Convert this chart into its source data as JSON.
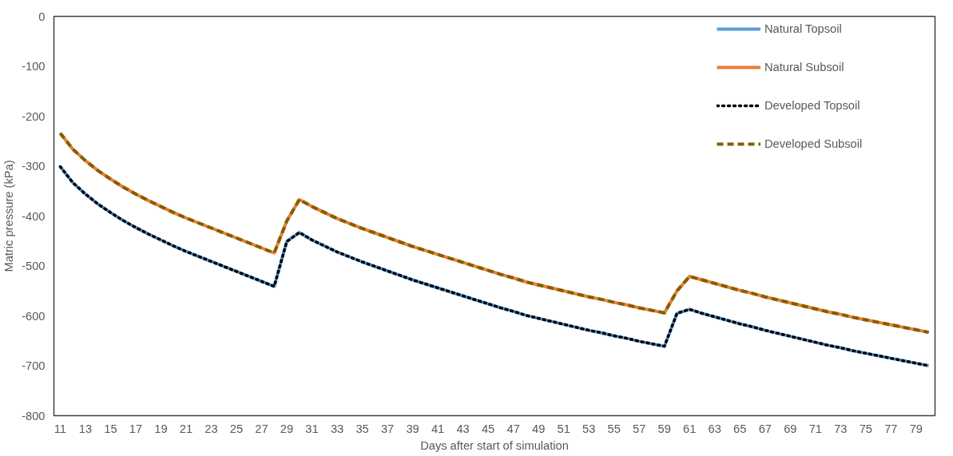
{
  "chart_data": {
    "type": "line",
    "xlabel": "Days after start of simulation",
    "ylabel": "Matric pressure (kPa)",
    "x": [
      11,
      12,
      13,
      14,
      15,
      16,
      17,
      18,
      19,
      20,
      21,
      22,
      23,
      24,
      25,
      26,
      27,
      28,
      29,
      30,
      31,
      32,
      33,
      34,
      35,
      36,
      37,
      38,
      39,
      40,
      41,
      42,
      43,
      44,
      45,
      46,
      47,
      48,
      49,
      50,
      51,
      52,
      53,
      54,
      55,
      56,
      57,
      58,
      59,
      60,
      61,
      62,
      63,
      64,
      65,
      66,
      67,
      68,
      69,
      70,
      71,
      72,
      73,
      74,
      75,
      76,
      77,
      78,
      79,
      80
    ],
    "xlim": [
      10.5,
      80.5
    ],
    "xticks": [
      11,
      13,
      15,
      17,
      19,
      21,
      23,
      25,
      27,
      29,
      31,
      33,
      35,
      37,
      39,
      41,
      43,
      45,
      47,
      49,
      51,
      53,
      55,
      57,
      59,
      61,
      63,
      65,
      67,
      69,
      71,
      73,
      75,
      77,
      79
    ],
    "ylim": [
      -800,
      0
    ],
    "yticks": [
      -800,
      -700,
      -600,
      -500,
      -400,
      -300,
      -200,
      -100,
      0
    ],
    "grid": false,
    "legend": "right",
    "series": [
      {
        "name": "Natural Topsoil",
        "color": "#5b9bd5",
        "line_style": "solid",
        "values": [
          -301,
          -333,
          -356,
          -376,
          -393,
          -409,
          -423,
          -436,
          -448,
          -460,
          -471,
          -481,
          -491,
          -501,
          -511,
          -521,
          -531,
          -541,
          -451,
          -433,
          -448,
          -460,
          -472,
          -482,
          -492,
          -501,
          -510,
          -519,
          -528,
          -536,
          -544,
          -552,
          -560,
          -568,
          -576,
          -584,
          -591,
          -599,
          -605,
          -611,
          -617,
          -623,
          -629,
          -634,
          -640,
          -645,
          -651,
          -656,
          -661,
          -595,
          -587,
          -595,
          -602,
          -609,
          -616,
          -622,
          -629,
          -635,
          -641,
          -647,
          -653,
          -659,
          -664,
          -670,
          -675,
          -680,
          -685,
          -690,
          -695,
          -700
        ]
      },
      {
        "name": "Natural Subsoil",
        "color": "#ed7d31",
        "line_style": "solid",
        "values": [
          -234,
          -266,
          -289,
          -309,
          -326,
          -342,
          -356,
          -369,
          -381,
          -393,
          -404,
          -414,
          -424,
          -434,
          -444,
          -454,
          -464,
          -474,
          -410,
          -367,
          -381,
          -393,
          -405,
          -415,
          -425,
          -434,
          -443,
          -452,
          -461,
          -469,
          -477,
          -485,
          -493,
          -501,
          -509,
          -517,
          -524,
          -532,
          -538,
          -544,
          -550,
          -556,
          -562,
          -567,
          -573,
          -578,
          -584,
          -589,
          -594,
          -550,
          -521,
          -528,
          -535,
          -542,
          -549,
          -555,
          -562,
          -568,
          -574,
          -580,
          -586,
          -592,
          -597,
          -603,
          -608,
          -613,
          -618,
          -623,
          -628,
          -633
        ]
      },
      {
        "name": "Developed Topsoil",
        "color": "#000000",
        "line_style": "dotted",
        "values": [
          -301,
          -333,
          -356,
          -376,
          -393,
          -409,
          -423,
          -436,
          -448,
          -460,
          -471,
          -481,
          -491,
          -501,
          -511,
          -521,
          -531,
          -541,
          -451,
          -433,
          -448,
          -460,
          -472,
          -482,
          -492,
          -501,
          -510,
          -519,
          -528,
          -536,
          -544,
          -552,
          -560,
          -568,
          -576,
          -584,
          -591,
          -599,
          -605,
          -611,
          -617,
          -623,
          -629,
          -634,
          -640,
          -645,
          -651,
          -656,
          -661,
          -595,
          -587,
          -595,
          -602,
          -609,
          -616,
          -622,
          -629,
          -635,
          -641,
          -647,
          -653,
          -659,
          -664,
          -670,
          -675,
          -680,
          -685,
          -690,
          -695,
          -700
        ]
      },
      {
        "name": "Developed Subsoil",
        "color": "#7f6000",
        "line_style": "dashed",
        "values": [
          -234,
          -266,
          -289,
          -309,
          -326,
          -342,
          -356,
          -369,
          -381,
          -393,
          -404,
          -414,
          -424,
          -434,
          -444,
          -454,
          -464,
          -474,
          -410,
          -367,
          -381,
          -393,
          -405,
          -415,
          -425,
          -434,
          -443,
          -452,
          -461,
          -469,
          -477,
          -485,
          -493,
          -501,
          -509,
          -517,
          -524,
          -532,
          -538,
          -544,
          -550,
          -556,
          -562,
          -567,
          -573,
          -578,
          -584,
          -589,
          -594,
          -550,
          -521,
          -528,
          -535,
          -542,
          -549,
          -555,
          -562,
          -568,
          -574,
          -580,
          -586,
          -592,
          -597,
          -603,
          -608,
          -613,
          -618,
          -623,
          -628,
          -633
        ]
      }
    ]
  }
}
